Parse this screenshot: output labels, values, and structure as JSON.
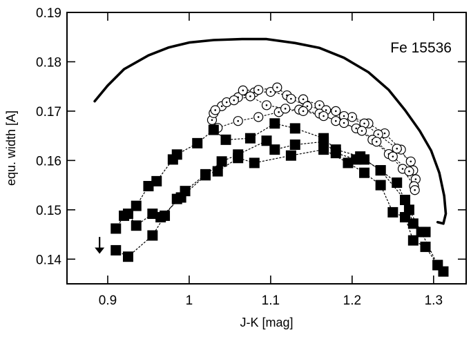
{
  "chart_data": {
    "type": "scatter",
    "title": "",
    "annotation": "Fe 15536",
    "xlabel": "J-K [mag]",
    "ylabel": "equ. width [A]",
    "xlim": [
      0.85,
      1.34
    ],
    "ylim": [
      0.135,
      0.19
    ],
    "xticks": [
      0.9,
      1.0,
      1.1,
      1.2,
      1.3
    ],
    "xtick_labels": [
      "0.9",
      "1",
      "1.1",
      "1.2",
      "1.3"
    ],
    "yticks": [
      0.14,
      0.15,
      0.16,
      0.17,
      0.18,
      0.19
    ],
    "ytick_labels": [
      "0.14",
      "0.15",
      "0.16",
      "0.17",
      "0.18",
      "0.19"
    ],
    "grid": false,
    "legend": "none",
    "series": [
      {
        "style": "solid-thick-line",
        "points": [
          [
            0.884,
            0.172
          ],
          [
            0.9,
            0.1752
          ],
          [
            0.92,
            0.1785
          ],
          [
            0.95,
            0.1813
          ],
          [
            0.975,
            0.1829
          ],
          [
            1.0,
            0.1839
          ],
          [
            1.03,
            0.1844
          ],
          [
            1.065,
            0.1846
          ],
          [
            1.095,
            0.1846
          ],
          [
            1.13,
            0.1838
          ],
          [
            1.16,
            0.1828
          ],
          [
            1.19,
            0.1808
          ],
          [
            1.22,
            0.1779
          ],
          [
            1.245,
            0.1743
          ],
          [
            1.265,
            0.1702
          ],
          [
            1.283,
            0.166
          ],
          [
            1.297,
            0.162
          ],
          [
            1.307,
            0.1575
          ],
          [
            1.313,
            0.1528
          ],
          [
            1.315,
            0.1492
          ],
          [
            1.312,
            0.1472
          ],
          [
            1.305,
            0.1475
          ]
        ]
      },
      {
        "style": "open-circles-dashed",
        "groups": [
          [
            [
              1.028,
              0.1682
            ],
            [
              1.04,
              0.171
            ],
            [
              1.06,
              0.1728
            ],
            [
              1.08,
              0.1738
            ],
            [
              1.1,
              0.1739
            ],
            [
              1.12,
              0.1732
            ],
            [
              1.14,
              0.1724
            ],
            [
              1.16,
              0.1712
            ],
            [
              1.18,
              0.17
            ],
            [
              1.2,
              0.1688
            ],
            [
              1.22,
              0.1675
            ],
            [
              1.24,
              0.1655
            ],
            [
              1.26,
              0.1622
            ],
            [
              1.275,
              0.158
            ]
          ],
          [
            [
              1.03,
              0.1696
            ],
            [
              1.046,
              0.1718
            ],
            [
              1.066,
              0.1742
            ],
            [
              1.085,
              0.1743
            ],
            [
              1.108,
              0.1748
            ],
            [
              1.125,
              0.1725
            ],
            [
              1.145,
              0.171
            ],
            [
              1.168,
              0.1702
            ],
            [
              1.19,
              0.169
            ],
            [
              1.215,
              0.1675
            ],
            [
              1.232,
              0.1653
            ],
            [
              1.255,
              0.1624
            ],
            [
              1.272,
              0.1598
            ],
            [
              1.278,
              0.1562
            ]
          ],
          [
            [
              1.035,
              0.1666
            ],
            [
              1.06,
              0.168
            ],
            [
              1.085,
              0.1688
            ],
            [
              1.11,
              0.1698
            ],
            [
              1.135,
              0.1703
            ],
            [
              1.16,
              0.1695
            ],
            [
              1.18,
              0.168
            ],
            [
              1.205,
              0.1665
            ],
            [
              1.225,
              0.1642
            ],
            [
              1.245,
              0.1613
            ],
            [
              1.262,
              0.1583
            ],
            [
              1.276,
              0.1548
            ]
          ],
          [
            [
              1.032,
              0.1702
            ],
            [
              1.055,
              0.1722
            ],
            [
              1.075,
              0.173
            ],
            [
              1.095,
              0.1712
            ],
            [
              1.118,
              0.1705
            ],
            [
              1.14,
              0.17
            ],
            [
              1.165,
              0.169
            ],
            [
              1.19,
              0.1676
            ],
            [
              1.212,
              0.166
            ],
            [
              1.23,
              0.1638
            ],
            [
              1.25,
              0.1608
            ],
            [
              1.27,
              0.1578
            ],
            [
              1.277,
              0.154
            ]
          ]
        ]
      },
      {
        "style": "filled-squares-dashed",
        "groups": [
          [
            [
              0.91,
              0.1418
            ],
            [
              0.925,
              0.1405
            ],
            [
              0.955,
              0.1448
            ],
            [
              0.97,
              0.1488
            ],
            [
              0.985,
              0.1522
            ],
            [
              0.995,
              0.1538
            ],
            [
              1.02,
              0.1572
            ],
            [
              1.035,
              0.1578
            ],
            [
              1.06,
              0.1605
            ],
            [
              1.08,
              0.1595
            ],
            [
              1.125,
              0.161
            ],
            [
              1.165,
              0.1622
            ],
            [
              1.195,
              0.1595
            ],
            [
              1.215,
              0.1575
            ],
            [
              1.235,
              0.155
            ],
            [
              1.25,
              0.1495
            ],
            [
              1.265,
              0.1485
            ],
            [
              1.275,
              0.1438
            ],
            [
              1.29,
              0.1425
            ],
            [
              1.305,
              0.1388
            ],
            [
              1.312,
              0.1375
            ]
          ],
          [
            [
              0.91,
              0.1462
            ],
            [
              0.92,
              0.1488
            ],
            [
              0.935,
              0.1508
            ],
            [
              0.95,
              0.1548
            ],
            [
              0.96,
              0.1558
            ],
            [
              0.98,
              0.1602
            ],
            [
              0.985,
              0.1612
            ],
            [
              1.01,
              0.1635
            ],
            [
              1.03,
              0.1662
            ],
            [
              1.045,
              0.1642
            ],
            [
              1.075,
              0.1645
            ],
            [
              1.105,
              0.1675
            ],
            [
              1.13,
              0.1665
            ],
            [
              1.165,
              0.1645
            ],
            [
              1.18,
              0.1622
            ],
            [
              1.21,
              0.1608
            ],
            [
              1.235,
              0.158
            ],
            [
              1.255,
              0.1555
            ],
            [
              1.27,
              0.15
            ],
            [
              1.285,
              0.1455
            ],
            [
              1.305,
              0.1388
            ]
          ],
          [
            [
              0.925,
              0.1492
            ],
            [
              0.935,
              0.1468
            ],
            [
              0.955,
              0.1492
            ],
            [
              0.965,
              0.1485
            ],
            [
              0.99,
              0.1525
            ],
            [
              1.02,
              0.157
            ],
            [
              1.04,
              0.1598
            ],
            [
              1.06,
              0.1612
            ],
            [
              1.095,
              0.164
            ],
            [
              1.105,
              0.1622
            ],
            [
              1.13,
              0.1632
            ],
            [
              1.165,
              0.1638
            ],
            [
              1.18,
              0.1615
            ],
            [
              1.205,
              0.1602
            ],
            [
              1.215,
              0.1602
            ],
            [
              1.235,
              0.158
            ],
            [
              1.265,
              0.152
            ],
            [
              1.275,
              0.1472
            ],
            [
              1.29,
              0.1455
            ]
          ]
        ]
      }
    ],
    "arrow": {
      "x": 0.89,
      "y_from": 0.1445,
      "y_to": 0.1415,
      "direction": "down"
    }
  }
}
